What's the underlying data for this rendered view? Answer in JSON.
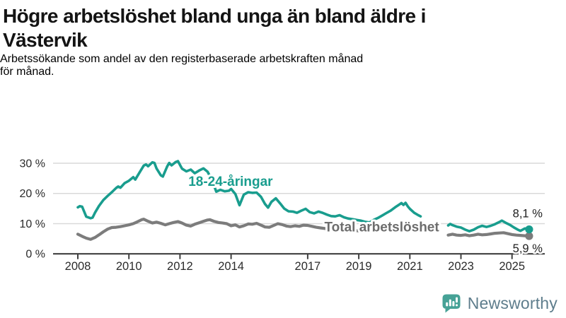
{
  "header": {
    "title_lines": [
      "Högre arbetslöshet bland unga än bland äldre i",
      "Västervik"
    ],
    "subtitle_lines": [
      "Arbetssökande som andel av den registerbaserade arbetskraften månad",
      "för månad."
    ]
  },
  "footer": {
    "brand": "Newsworthy"
  },
  "colors": {
    "background": "#ffffff",
    "grid": "#d9d9d9",
    "axis": "#404040",
    "tick_label": "#2b2b2b",
    "value_label": "#1e1e1e",
    "halo": "#ffffff",
    "logo_bubble": "#46a296",
    "logo_glyph": "#ffffff",
    "logo_text": "#5e7d8c"
  },
  "chart_data": {
    "type": "line",
    "unit": "%",
    "grid": true,
    "y_axis": {
      "range": [
        0,
        32
      ],
      "ticks": [
        {
          "value": 0,
          "label": "0 %"
        },
        {
          "value": 10,
          "label": "10 %"
        },
        {
          "value": 20,
          "label": "20 %"
        },
        {
          "value": 30,
          "label": "30 %"
        }
      ]
    },
    "x_axis": {
      "range_years": [
        2008,
        2025.75
      ],
      "ticks": [
        {
          "value": 2008,
          "label": "2008"
        },
        {
          "value": 2010,
          "label": "2010"
        },
        {
          "value": 2012,
          "label": "2012"
        },
        {
          "value": 2014,
          "label": "2014"
        },
        {
          "value": 2017,
          "label": "2017"
        },
        {
          "value": 2019,
          "label": "2019"
        },
        {
          "value": 2021,
          "label": "2021"
        },
        {
          "value": 2023,
          "label": "2023"
        },
        {
          "value": 2025,
          "label": "2025"
        }
      ]
    },
    "series": [
      {
        "id": "total",
        "name": "Total arbetslöshet",
        "color": "#7c7c7c",
        "label_color": "#6d6d6d",
        "line_width": 4.2,
        "inline_label": {
          "text": "Total arbetslöshet",
          "t": 2019.9,
          "value": 7.42
        },
        "end_value": 5.9,
        "end_label": {
          "text": "5,9 %",
          "placement": "below"
        },
        "segments": [
          [
            [
              2008.0,
              6.5
            ],
            [
              2008.17,
              5.8
            ],
            [
              2008.33,
              5.2
            ],
            [
              2008.5,
              4.8
            ],
            [
              2008.67,
              5.4
            ],
            [
              2008.83,
              6.3
            ],
            [
              2009.0,
              7.3
            ],
            [
              2009.17,
              8.2
            ],
            [
              2009.33,
              8.7
            ],
            [
              2009.5,
              8.8
            ],
            [
              2009.67,
              9.0
            ],
            [
              2009.83,
              9.3
            ],
            [
              2010.0,
              9.6
            ],
            [
              2010.17,
              10.0
            ],
            [
              2010.33,
              10.6
            ],
            [
              2010.5,
              11.3
            ],
            [
              2010.58,
              11.5
            ],
            [
              2010.75,
              10.8
            ],
            [
              2010.92,
              10.2
            ],
            [
              2011.08,
              10.5
            ],
            [
              2011.25,
              10.1
            ],
            [
              2011.42,
              9.6
            ],
            [
              2011.58,
              10.0
            ],
            [
              2011.75,
              10.4
            ],
            [
              2011.92,
              10.7
            ],
            [
              2012.08,
              10.2
            ],
            [
              2012.25,
              9.5
            ],
            [
              2012.42,
              9.2
            ],
            [
              2012.58,
              9.8
            ],
            [
              2012.75,
              10.3
            ],
            [
              2012.92,
              10.8
            ],
            [
              2013.08,
              11.2
            ],
            [
              2013.17,
              11.3
            ],
            [
              2013.33,
              10.8
            ],
            [
              2013.5,
              10.4
            ],
            [
              2013.67,
              10.2
            ],
            [
              2013.83,
              10.0
            ],
            [
              2014.0,
              9.3
            ],
            [
              2014.17,
              9.6
            ],
            [
              2014.33,
              8.9
            ],
            [
              2014.5,
              9.3
            ],
            [
              2014.67,
              9.9
            ],
            [
              2014.83,
              9.8
            ],
            [
              2015.0,
              10.1
            ],
            [
              2015.17,
              9.5
            ],
            [
              2015.33,
              8.9
            ],
            [
              2015.5,
              8.8
            ],
            [
              2015.67,
              9.4
            ],
            [
              2015.83,
              10.0
            ],
            [
              2016.0,
              9.7
            ],
            [
              2016.17,
              9.2
            ],
            [
              2016.33,
              9.0
            ],
            [
              2016.5,
              9.3
            ],
            [
              2016.67,
              9.1
            ],
            [
              2016.83,
              9.5
            ],
            [
              2017.0,
              9.4
            ],
            [
              2017.17,
              9.1
            ],
            [
              2017.33,
              8.8
            ],
            [
              2017.5,
              8.6
            ],
            [
              2017.67,
              8.4
            ],
            [
              2017.83,
              8.2
            ],
            [
              2018.0,
              8.1
            ],
            [
              2018.17,
              8.2
            ],
            [
              2018.33,
              8.0
            ],
            [
              2018.5,
              7.9
            ],
            [
              2018.67,
              7.8
            ],
            [
              2018.83,
              7.7
            ],
            [
              2019.0,
              7.6
            ],
            [
              2019.17,
              7.5
            ],
            [
              2019.33,
              7.6
            ],
            [
              2019.5,
              7.8
            ],
            [
              2019.67,
              8.0
            ],
            [
              2019.83,
              8.3
            ],
            [
              2020.0,
              8.7
            ],
            [
              2020.17,
              9.1
            ],
            [
              2020.33,
              9.4
            ],
            [
              2020.5,
              9.6
            ],
            [
              2020.67,
              9.5
            ],
            [
              2020.83,
              9.3
            ],
            [
              2021.0,
              9.0
            ],
            [
              2021.17,
              8.6
            ],
            [
              2021.42,
              8.2
            ]
          ],
          [
            [
              2022.5,
              6.2
            ],
            [
              2022.67,
              6.5
            ],
            [
              2022.83,
              6.2
            ],
            [
              2023.0,
              6.1
            ],
            [
              2023.17,
              6.3
            ],
            [
              2023.33,
              6.0
            ],
            [
              2023.5,
              6.2
            ],
            [
              2023.67,
              6.5
            ],
            [
              2023.83,
              6.3
            ],
            [
              2024.0,
              6.4
            ],
            [
              2024.17,
              6.6
            ],
            [
              2024.33,
              6.8
            ],
            [
              2024.5,
              6.9
            ],
            [
              2024.67,
              7.0
            ],
            [
              2024.83,
              6.7
            ],
            [
              2025.0,
              6.4
            ],
            [
              2025.17,
              6.2
            ],
            [
              2025.33,
              6.1
            ],
            [
              2025.5,
              6.0
            ],
            [
              2025.67,
              5.9
            ]
          ]
        ]
      },
      {
        "id": "youth",
        "name": "18-24-åringar",
        "color": "#199d8e",
        "label_color": "#199d8e",
        "line_width": 3.6,
        "inline_label": {
          "text": "18-24-åringar",
          "t": 2013.98,
          "value": 22.5
        },
        "end_value": 8.1,
        "end_label": {
          "text": "8,1 %",
          "placement": "above"
        },
        "segments": [
          [
            [
              2008.0,
              15.4
            ],
            [
              2008.08,
              15.8
            ],
            [
              2008.17,
              15.6
            ],
            [
              2008.33,
              12.3
            ],
            [
              2008.5,
              11.8
            ],
            [
              2008.58,
              12.0
            ],
            [
              2008.67,
              13.6
            ],
            [
              2008.83,
              15.9
            ],
            [
              2009.0,
              17.8
            ],
            [
              2009.17,
              19.2
            ],
            [
              2009.33,
              20.4
            ],
            [
              2009.5,
              21.8
            ],
            [
              2009.58,
              22.3
            ],
            [
              2009.67,
              21.9
            ],
            [
              2009.83,
              23.4
            ],
            [
              2010.0,
              24.2
            ],
            [
              2010.17,
              25.4
            ],
            [
              2010.25,
              24.6
            ],
            [
              2010.42,
              27.0
            ],
            [
              2010.58,
              29.2
            ],
            [
              2010.67,
              29.6
            ],
            [
              2010.75,
              29.0
            ],
            [
              2010.92,
              30.3
            ],
            [
              2011.0,
              30.1
            ],
            [
              2011.08,
              28.3
            ],
            [
              2011.25,
              26.0
            ],
            [
              2011.33,
              25.6
            ],
            [
              2011.5,
              29.0
            ],
            [
              2011.58,
              30.1
            ],
            [
              2011.67,
              29.3
            ],
            [
              2011.83,
              30.4
            ],
            [
              2011.92,
              30.7
            ],
            [
              2012.08,
              28.2
            ],
            [
              2012.25,
              27.3
            ],
            [
              2012.42,
              27.9
            ],
            [
              2012.58,
              26.7
            ],
            [
              2012.75,
              27.6
            ],
            [
              2012.92,
              28.3
            ],
            [
              2013.08,
              27.2
            ],
            [
              2013.25,
              24.5
            ],
            [
              2013.42,
              20.6
            ],
            [
              2013.58,
              21.2
            ],
            [
              2013.75,
              20.7
            ],
            [
              2013.92,
              20.9
            ],
            [
              2014.0,
              21.5
            ],
            [
              2014.17,
              19.8
            ],
            [
              2014.33,
              16.1
            ],
            [
              2014.5,
              19.6
            ],
            [
              2014.67,
              20.4
            ],
            [
              2014.83,
              20.2
            ],
            [
              2015.0,
              20.3
            ],
            [
              2015.17,
              18.9
            ],
            [
              2015.33,
              16.5
            ],
            [
              2015.45,
              15.3
            ],
            [
              2015.58,
              17.2
            ],
            [
              2015.75,
              18.4
            ],
            [
              2015.92,
              16.7
            ],
            [
              2016.08,
              15.0
            ],
            [
              2016.25,
              14.1
            ],
            [
              2016.42,
              14.0
            ],
            [
              2016.58,
              13.6
            ],
            [
              2016.75,
              14.3
            ],
            [
              2016.92,
              14.9
            ],
            [
              2017.08,
              13.8
            ],
            [
              2017.25,
              13.4
            ],
            [
              2017.42,
              14.0
            ],
            [
              2017.58,
              13.6
            ],
            [
              2017.75,
              13.0
            ],
            [
              2017.92,
              12.5
            ],
            [
              2018.08,
              12.4
            ],
            [
              2018.25,
              12.8
            ],
            [
              2018.42,
              12.1
            ],
            [
              2018.58,
              11.7
            ],
            [
              2018.75,
              11.5
            ],
            [
              2018.92,
              11.2
            ],
            [
              2019.08,
              11.0
            ],
            [
              2019.25,
              10.6
            ],
            [
              2019.42,
              10.4
            ],
            [
              2019.58,
              11.2
            ],
            [
              2019.75,
              11.9
            ],
            [
              2019.92,
              12.7
            ],
            [
              2020.08,
              13.5
            ],
            [
              2020.25,
              14.3
            ],
            [
              2020.42,
              15.4
            ],
            [
              2020.58,
              16.3
            ],
            [
              2020.67,
              16.8
            ],
            [
              2020.75,
              16.2
            ],
            [
              2020.83,
              16.9
            ],
            [
              2020.92,
              15.7
            ],
            [
              2021.0,
              14.9
            ],
            [
              2021.17,
              13.6
            ],
            [
              2021.33,
              12.8
            ],
            [
              2021.42,
              12.4
            ]
          ],
          [
            [
              2022.5,
              9.4
            ],
            [
              2022.58,
              9.9
            ],
            [
              2022.67,
              9.5
            ],
            [
              2022.83,
              9.0
            ],
            [
              2023.0,
              8.7
            ],
            [
              2023.17,
              8.0
            ],
            [
              2023.33,
              7.5
            ],
            [
              2023.5,
              8.0
            ],
            [
              2023.67,
              8.8
            ],
            [
              2023.83,
              9.3
            ],
            [
              2024.0,
              8.9
            ],
            [
              2024.17,
              9.3
            ],
            [
              2024.33,
              9.8
            ],
            [
              2024.5,
              10.5
            ],
            [
              2024.6,
              11.0
            ],
            [
              2024.75,
              10.3
            ],
            [
              2024.92,
              9.6
            ],
            [
              2025.08,
              8.7
            ],
            [
              2025.25,
              7.9
            ],
            [
              2025.33,
              7.6
            ],
            [
              2025.5,
              8.4
            ],
            [
              2025.67,
              8.1
            ]
          ]
        ]
      }
    ]
  }
}
